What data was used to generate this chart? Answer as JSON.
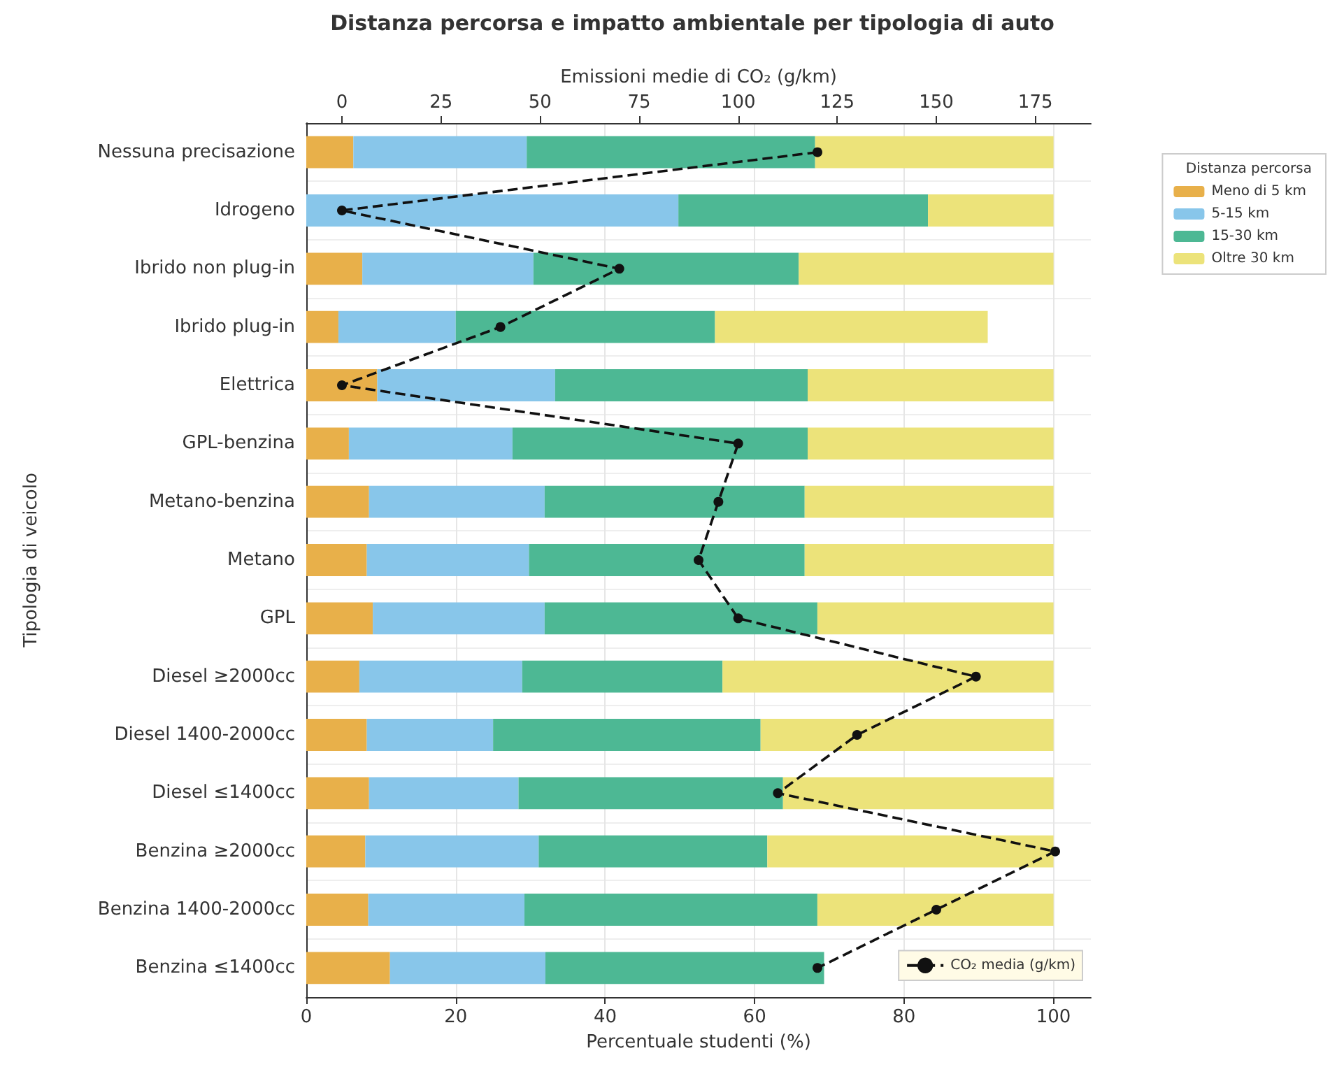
{
  "chart_data": {
    "type": "bar",
    "orientation": "horizontal",
    "stacked": true,
    "title": "Distanza percorsa e impatto ambientale per tipologia di auto",
    "xlabel": "Percentuale studenti (%)",
    "ylabel": "Tipologia di veicolo",
    "x2label": "Emissioni medie di CO₂ (g/km)",
    "legend_title": "Distanza percorsa",
    "categories": [
      "Nessuna precisazione",
      "Idrogeno",
      "Ibrido non plug-in",
      "Ibrido plug-in",
      "Elettrica",
      "GPL-benzina",
      "Metano-benzina",
      "Metano",
      "GPL",
      "Diesel ≥2000cc",
      "Diesel 1400-2000cc",
      "Diesel ≤1400cc",
      "Benzina ≥2000cc",
      "Benzina 1400-2000cc",
      "Benzina ≤1400cc"
    ],
    "series": [
      {
        "name": "Meno di 5 km",
        "color": "#e8b04a",
        "values": [
          6.3,
          0,
          7.5,
          4.3,
          9.5,
          5.7,
          8.4,
          8.1,
          8.9,
          7.1,
          8.1,
          8.4,
          7.9,
          8.3,
          11.2
        ]
      },
      {
        "name": "5-15 km",
        "color": "#88c6ea",
        "values": [
          23.2,
          49.8,
          22.9,
          15.7,
          23.8,
          21.9,
          23.5,
          21.7,
          23.0,
          21.8,
          16.9,
          20.0,
          23.2,
          20.9,
          20.8
        ]
      },
      {
        "name": "15-30 km",
        "color": "#4db894",
        "values": [
          38.6,
          33.4,
          35.5,
          34.7,
          33.8,
          39.5,
          34.8,
          36.9,
          36.5,
          26.8,
          35.8,
          35.4,
          30.6,
          39.2,
          37.3
        ]
      },
      {
        "name": "Oltre 30 km",
        "color": "#ece37a",
        "values": [
          31.9,
          16.8,
          34.1,
          36.5,
          32.9,
          32.9,
          33.3,
          33.3,
          31.6,
          44.3,
          39.2,
          36.2,
          38.3,
          31.6,
          null
        ]
      },
      {
        "name": "CO₂ media (g/km)",
        "type": "line",
        "axis": "x2",
        "color": "#111111",
        "marker": "circle",
        "line_style": "dashed",
        "values": [
          120,
          0,
          70,
          40,
          0,
          100,
          95,
          90,
          100,
          160,
          130,
          110,
          180,
          150,
          120
        ]
      }
    ],
    "xlim": [
      0,
      105
    ],
    "xticks": [
      0,
      20,
      40,
      60,
      80,
      100
    ],
    "x2lim": [
      -9,
      189
    ],
    "x2ticks": [
      0,
      25,
      50,
      75,
      100,
      125,
      150,
      175
    ],
    "grid": true,
    "legend": "right"
  }
}
